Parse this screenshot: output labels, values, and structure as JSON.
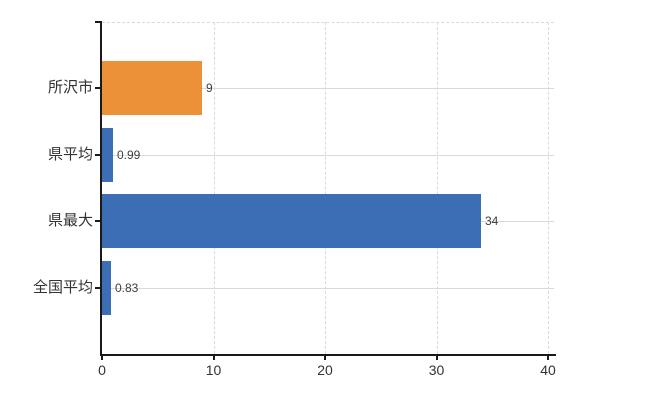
{
  "chart_data": {
    "type": "bar",
    "orientation": "horizontal",
    "title": "",
    "xlabel": "",
    "ylabel": "",
    "categories": [
      "所沢市",
      "県平均",
      "県最大",
      "全国平均"
    ],
    "values": [
      9,
      0.99,
      34,
      0.83
    ],
    "value_labels": [
      "9",
      "0.99",
      "34",
      "0.83"
    ],
    "bar_colors": [
      "#EC9138",
      "#3C6EB5",
      "#3C6EB5",
      "#3C6EB5"
    ],
    "x_tick_labels": [
      "0",
      "10",
      "20",
      "30",
      "40"
    ],
    "x_tick_values": [
      0,
      10,
      20,
      30,
      40
    ],
    "xlim": [
      0,
      40
    ],
    "grid": "on",
    "legend": "none",
    "colors": {
      "grid": "#D9D9D9",
      "axis": "#1A1A1A",
      "text": "#333333",
      "background": "#FFFFFF"
    }
  }
}
